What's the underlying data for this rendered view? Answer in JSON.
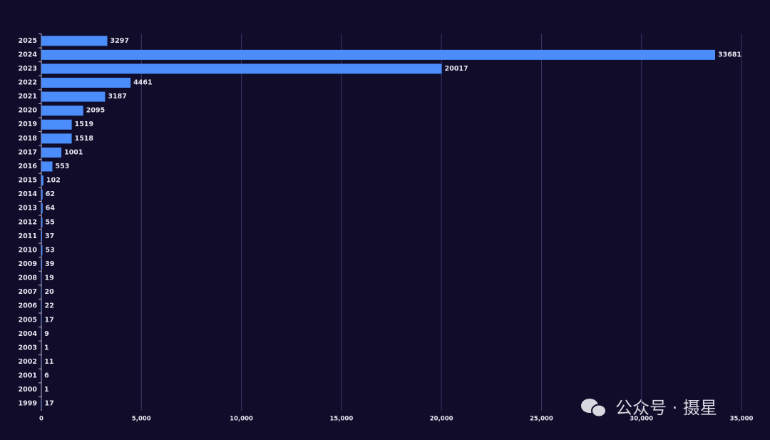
{
  "chart_data": {
    "type": "hbar",
    "categories": [
      "2025",
      "2024",
      "2023",
      "2022",
      "2021",
      "2020",
      "2019",
      "2018",
      "2017",
      "2016",
      "2015",
      "2014",
      "2013",
      "2012",
      "2011",
      "2010",
      "2009",
      "2008",
      "2007",
      "2006",
      "2005",
      "2004",
      "2003",
      "2002",
      "2001",
      "2000",
      "1999"
    ],
    "values": [
      3297,
      33681,
      20017,
      4461,
      3187,
      2095,
      1519,
      1518,
      1001,
      553,
      102,
      62,
      64,
      55,
      37,
      53,
      39,
      19,
      20,
      22,
      17,
      9,
      1,
      11,
      6,
      1,
      17
    ],
    "color": "#4a8dfb",
    "xlim": [
      0,
      35000
    ],
    "xticks": [
      0,
      {
        "value": 5000,
        "label": "5,000"
      },
      {
        "value": 10000,
        "label": "10,000"
      },
      {
        "value": 15000,
        "label": "15,000"
      },
      {
        "value": 20000,
        "label": "20,000"
      },
      {
        "value": 25000,
        "label": "25,000"
      },
      {
        "value": 30000,
        "label": "30,000"
      },
      {
        "value": 35000,
        "label": "35,000"
      }
    ],
    "grid": true,
    "watermark": "公众号 · 摄星"
  }
}
